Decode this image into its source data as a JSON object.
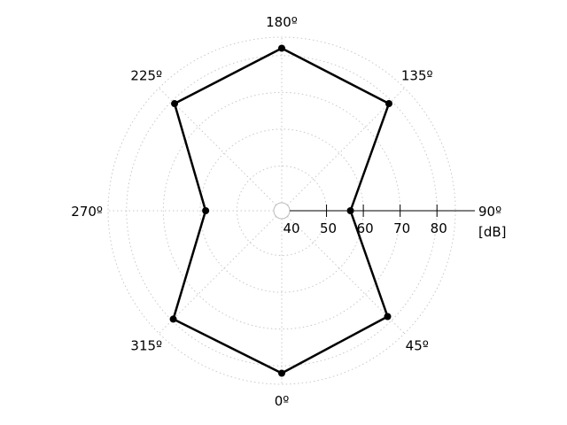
{
  "chart_data": {
    "type": "line",
    "subtype": "polar",
    "title": "",
    "radial_axis": {
      "ticks": [
        40,
        50,
        60,
        70,
        80
      ],
      "tick_labels": [
        "40",
        "50",
        "60",
        "70",
        "80"
      ],
      "range": [
        40,
        85
      ],
      "unit_label": "[dB]"
    },
    "angular_axis": {
      "labels": [
        "0º",
        "45º",
        "90º",
        "135º",
        "180º",
        "225º",
        "270º",
        "315º"
      ],
      "zero_location": "bottom",
      "direction": "counterclockwise"
    },
    "grid": true,
    "series": [
      {
        "angles": [
          0,
          45,
          90,
          135,
          180,
          225,
          270,
          315
        ],
        "values": [
          82,
          78.5,
          56.5,
          79,
          82,
          79,
          58.5,
          79.5
        ]
      }
    ],
    "colors": {
      "line": "#000000",
      "grid": "#c8c8c8"
    }
  }
}
